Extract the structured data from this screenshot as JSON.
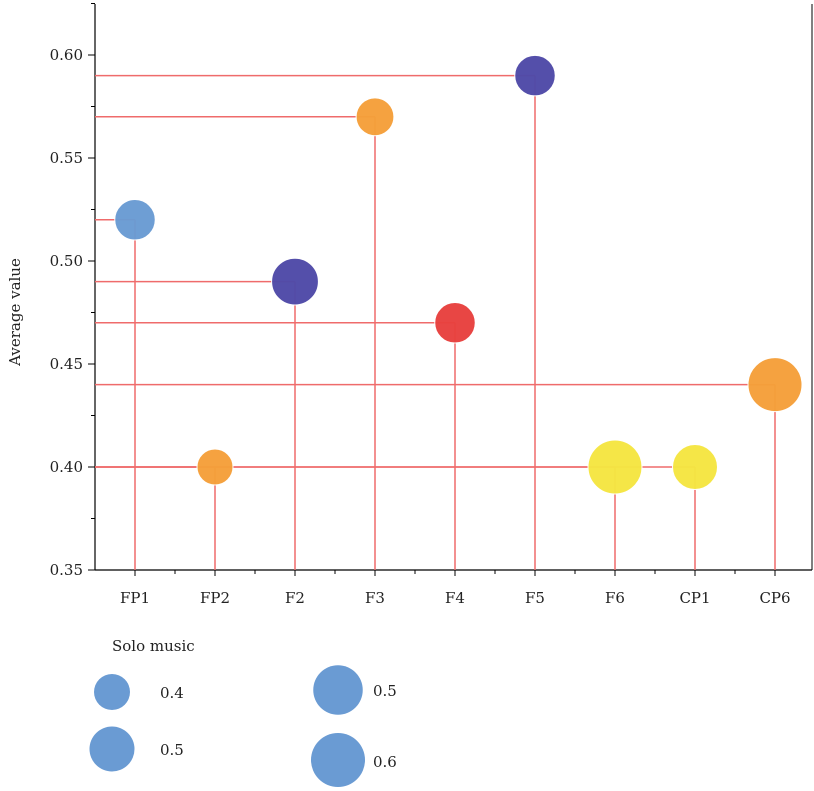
{
  "chart_data": {
    "type": "scatter",
    "subtype": "bubble-lollipop",
    "ylabel": "Average value",
    "ylim": [
      0.35,
      0.625
    ],
    "yticks": [
      0.35,
      0.4,
      0.45,
      0.5,
      0.55,
      0.6
    ],
    "ytick_labels": [
      "0.35",
      "0.40",
      "0.45",
      "0.50",
      "0.55",
      "0.60"
    ],
    "categories": [
      "FP1",
      "FP2",
      "F2",
      "F3",
      "F4",
      "F5",
      "F6",
      "CP1",
      "CP6"
    ],
    "values": [
      0.52,
      0.4,
      0.49,
      0.57,
      0.47,
      0.59,
      0.4,
      0.4,
      0.44
    ],
    "sizes": [
      0.45,
      0.4,
      0.52,
      0.42,
      0.45,
      0.45,
      0.6,
      0.5,
      0.6
    ],
    "colors": [
      "#6a9bd3",
      "#f5a03a",
      "#4f4aa8",
      "#f5a03a",
      "#e8413e",
      "#4f4aa8",
      "#f5e642",
      "#f5e642",
      "#f5a03a"
    ],
    "line_color": "#ef6b6b",
    "grid": false,
    "legend": {
      "title": "Solo music",
      "placement": "bottom-left",
      "color": "#6a9bd3",
      "entries": [
        {
          "label": "0.4",
          "size": 0.4
        },
        {
          "label": "0.5",
          "size": 0.5
        },
        {
          "label": "0.5",
          "size": 0.55
        },
        {
          "label": "0.6",
          "size": 0.6
        }
      ]
    }
  }
}
